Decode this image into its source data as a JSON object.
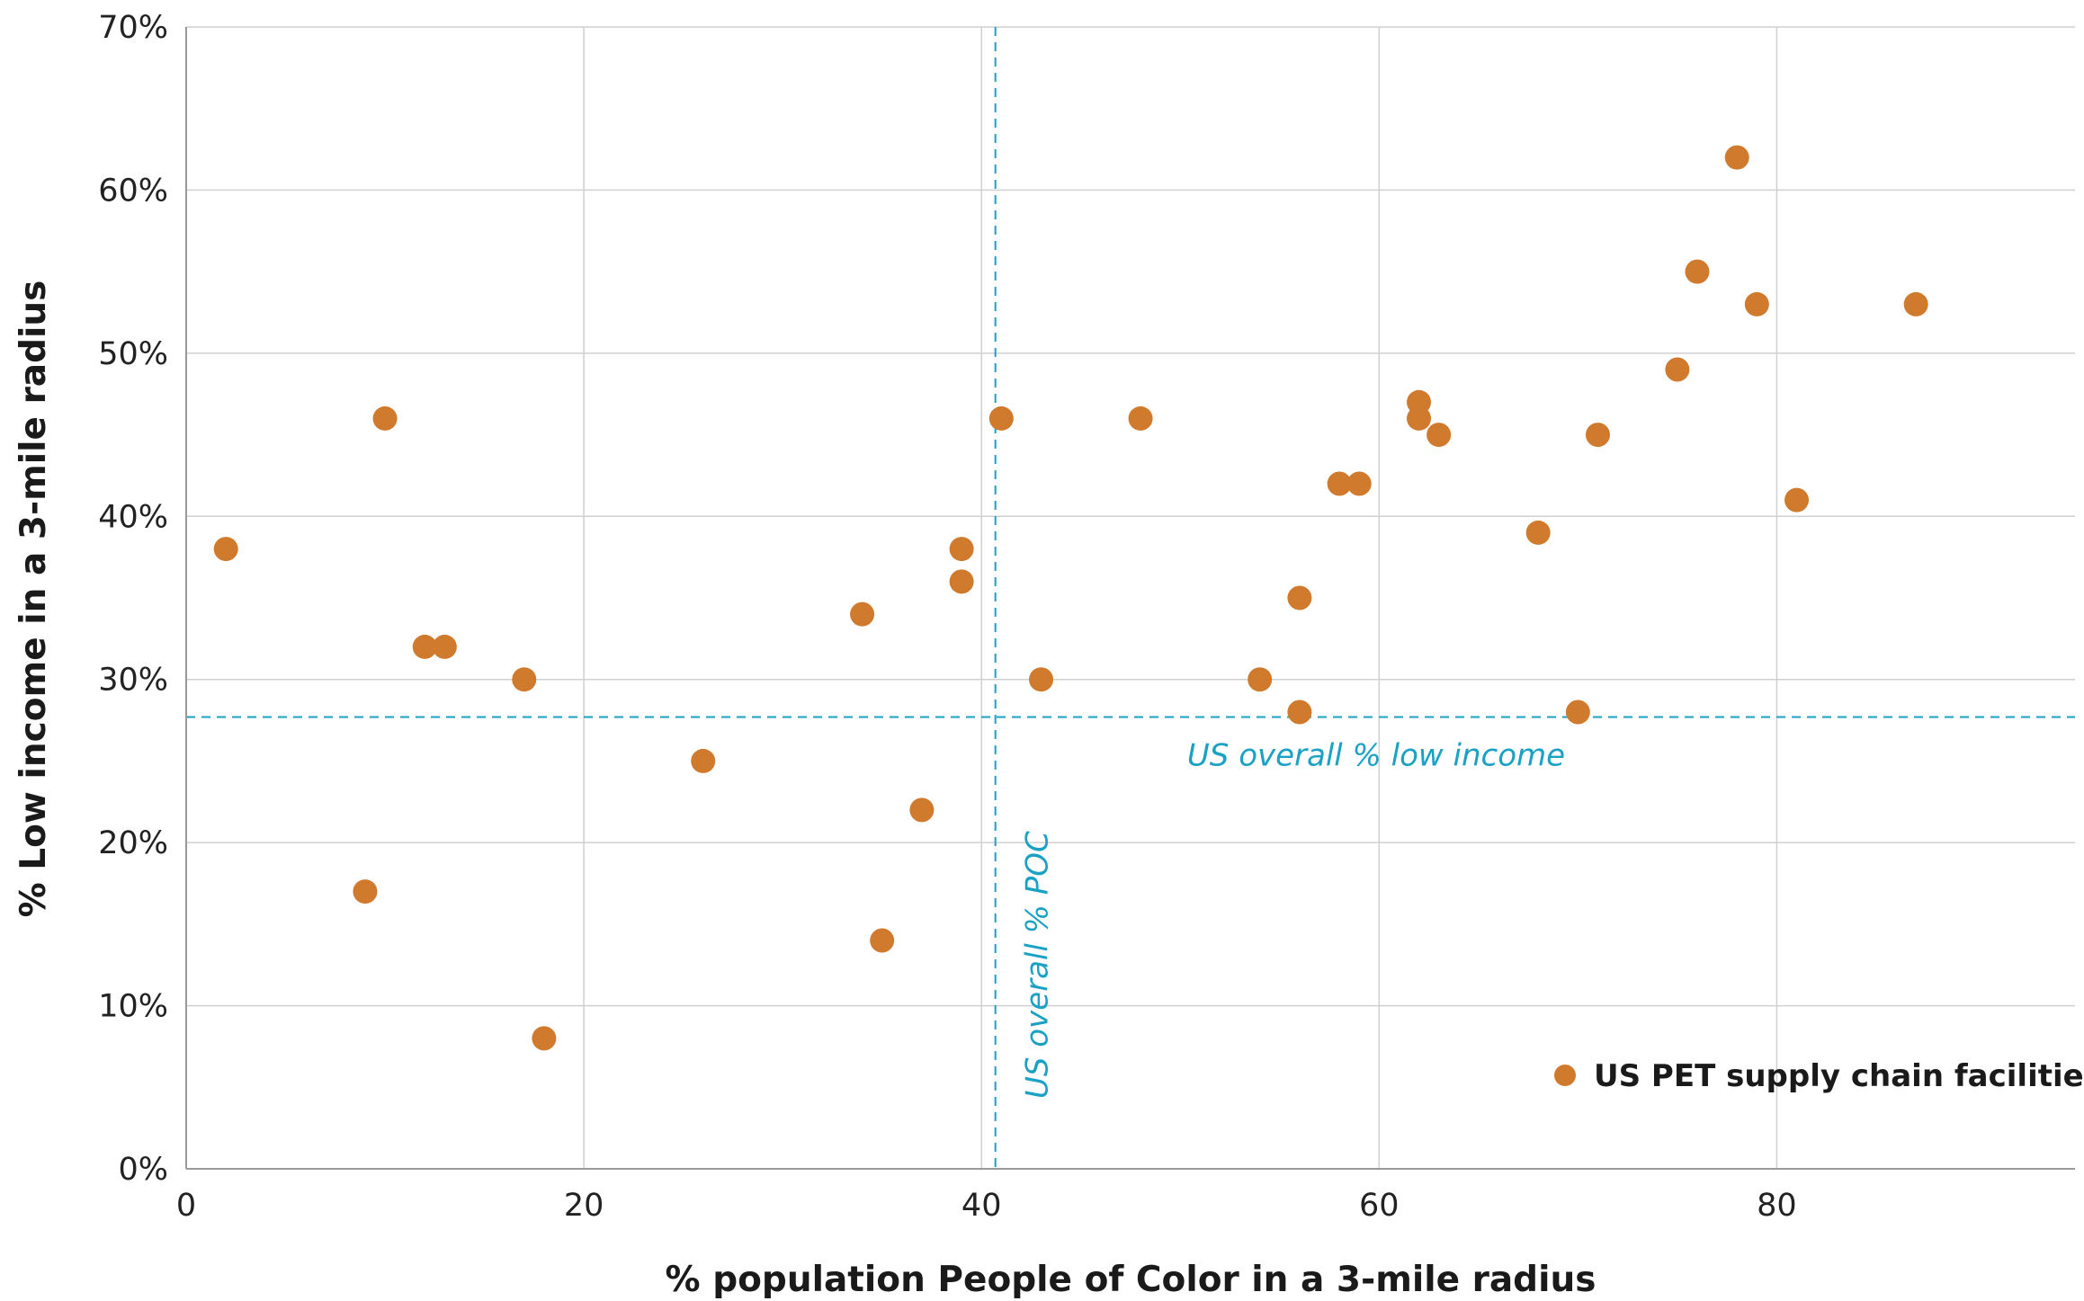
{
  "chart_data": {
    "type": "scatter",
    "xlabel": "% population People of Color in a 3-mile radius",
    "ylabel": "% Low income in a 3-mile radius",
    "xlim": [
      0,
      95
    ],
    "ylim": [
      0,
      70
    ],
    "x_ticks": [
      0,
      20,
      40,
      60,
      80
    ],
    "x_tick_labels": [
      "0",
      "20",
      "40",
      "60",
      "80"
    ],
    "y_ticks": [
      0,
      10,
      20,
      30,
      40,
      50,
      60,
      70
    ],
    "y_tick_labels": [
      "0%",
      "10%",
      "20%",
      "30%",
      "40%",
      "50%",
      "60%",
      "70%"
    ],
    "grid": true,
    "legend_position": "bottom-right",
    "marker_color": "#d07a2e",
    "reference_color": "#1aa1c4",
    "series": [
      {
        "name": "US PET supply chain facilities",
        "points": [
          [
            2,
            38
          ],
          [
            9,
            17
          ],
          [
            10,
            46
          ],
          [
            12,
            32
          ],
          [
            13,
            32
          ],
          [
            17,
            30
          ],
          [
            18,
            8
          ],
          [
            26,
            25
          ],
          [
            34,
            34
          ],
          [
            35,
            14
          ],
          [
            37,
            22
          ],
          [
            39,
            38
          ],
          [
            39,
            36
          ],
          [
            41,
            46
          ],
          [
            43,
            30
          ],
          [
            48,
            46
          ],
          [
            54,
            30
          ],
          [
            56,
            35
          ],
          [
            56,
            28
          ],
          [
            58,
            42
          ],
          [
            59,
            42
          ],
          [
            62,
            47
          ],
          [
            62,
            46
          ],
          [
            63,
            45
          ],
          [
            68,
            39
          ],
          [
            70,
            28
          ],
          [
            71,
            45
          ],
          [
            75,
            49
          ],
          [
            76,
            55
          ],
          [
            78,
            62
          ],
          [
            79,
            53
          ],
          [
            81,
            41
          ],
          [
            87,
            53
          ]
        ]
      }
    ],
    "reference_lines": [
      {
        "axis": "x",
        "value": 40.7,
        "label": "US overall % POC"
      },
      {
        "axis": "y",
        "value": 27.7,
        "label": "US overall % low income"
      }
    ]
  }
}
